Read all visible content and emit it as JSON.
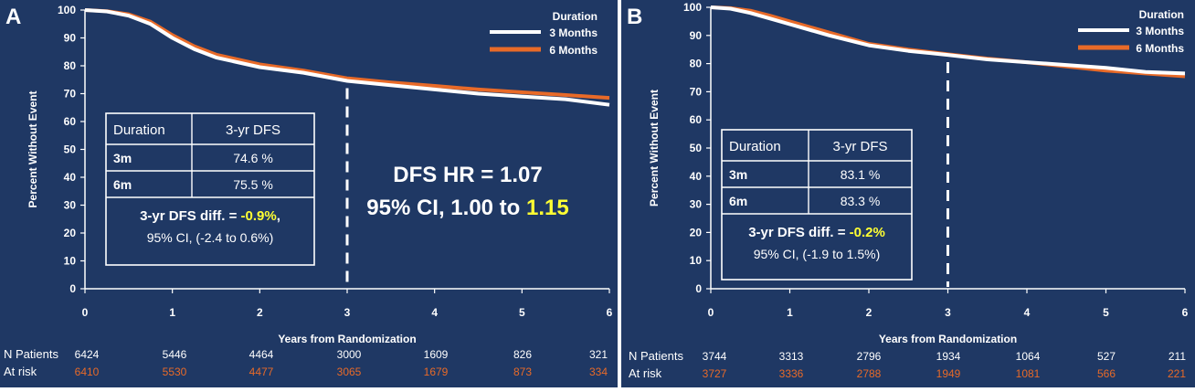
{
  "colors": {
    "background": "#1f3864",
    "panel_border": "#5b7fb8",
    "series_3m": "#ffffff",
    "series_6m": "#e86a28",
    "highlight": "#ffff33",
    "text": "#ffffff"
  },
  "chart_data": [
    {
      "panel_label": "A",
      "type": "line",
      "ylabel": "Percent Without Event",
      "xlabel": "Years from Randomization",
      "xlim": [
        0,
        6
      ],
      "ylim": [
        0,
        100
      ],
      "xticks": [
        "0",
        "1",
        "2",
        "3",
        "4",
        "5",
        "6"
      ],
      "yticks": [
        "0",
        "10",
        "20",
        "30",
        "40",
        "50",
        "60",
        "70",
        "80",
        "90",
        "100"
      ],
      "legend": {
        "title": "Duration",
        "placement": "top-right",
        "entries": [
          "3 Months",
          "6 Months"
        ]
      },
      "series": [
        {
          "name": "3 Months",
          "x": [
            0,
            0.25,
            0.5,
            0.75,
            1,
            1.25,
            1.5,
            2,
            2.5,
            3,
            3.5,
            4,
            4.5,
            5,
            5.5,
            6
          ],
          "y": [
            100,
            99.5,
            98,
            95,
            90,
            86,
            83,
            79.5,
            77.5,
            74.6,
            73,
            71.5,
            70,
            69,
            68,
            66
          ]
        },
        {
          "name": "6 Months",
          "x": [
            0,
            0.25,
            0.5,
            0.75,
            1,
            1.25,
            1.5,
            2,
            2.5,
            3,
            3.5,
            4,
            4.5,
            5,
            5.5,
            6
          ],
          "y": [
            100,
            99.6,
            98.5,
            95.8,
            91,
            87,
            84,
            80.5,
            78.3,
            75.5,
            74,
            72.8,
            71.5,
            70.5,
            69.5,
            68.5
          ]
        }
      ],
      "vline_at": 3,
      "table": {
        "headers": [
          "Duration",
          "3-yr DFS"
        ],
        "rows": [
          [
            "3m",
            "74.6 %"
          ],
          [
            "6m",
            "75.5 %"
          ]
        ],
        "diff_prefix": "3-yr DFS diff. = ",
        "diff_value": "-0.9%",
        "diff_suffix": ",",
        "ci_line": "95% CI, (-2.4 to 0.6%)"
      },
      "hr": {
        "line1": "DFS HR = 1.07",
        "line2_prefix": "95% CI, 1.00 to ",
        "line2_highlight": "1.15"
      },
      "at_risk": {
        "label1": "N Patients",
        "label2": "At risk",
        "row1": [
          "6424",
          "5446",
          "4464",
          "3000",
          "1609",
          "826",
          "321"
        ],
        "row2": [
          "6410",
          "5530",
          "4477",
          "3065",
          "1679",
          "873",
          "334"
        ]
      }
    },
    {
      "panel_label": "B",
      "type": "line",
      "ylabel": "Percent Without Event",
      "xlabel": "Years from Randomization",
      "xlim": [
        0,
        6
      ],
      "ylim": [
        0,
        100
      ],
      "xticks": [
        "0",
        "1",
        "2",
        "3",
        "4",
        "5",
        "6"
      ],
      "yticks": [
        "0",
        "10",
        "20",
        "30",
        "40",
        "50",
        "60",
        "70",
        "80",
        "90",
        "100"
      ],
      "legend": {
        "title": "Duration",
        "placement": "top-right",
        "entries": [
          "3 Months",
          "6 Months"
        ]
      },
      "series": [
        {
          "name": "3 Months",
          "x": [
            0,
            0.25,
            0.5,
            0.75,
            1,
            1.5,
            2,
            2.5,
            3,
            3.5,
            4,
            4.5,
            5,
            5.5,
            6
          ],
          "y": [
            100,
            99.5,
            98,
            96,
            94,
            90,
            86.5,
            84.5,
            83.1,
            81.5,
            80.5,
            79.5,
            78.5,
            77,
            76.5
          ]
        },
        {
          "name": "6 Months",
          "x": [
            0,
            0.25,
            0.5,
            0.75,
            1,
            1.5,
            2,
            2.5,
            3,
            3.5,
            4,
            4.5,
            5,
            5.5,
            6
          ],
          "y": [
            100,
            99.7,
            98.8,
            97,
            95,
            91,
            87,
            85,
            83.3,
            81.8,
            80.5,
            79,
            77.5,
            76.5,
            75.5
          ]
        }
      ],
      "vline_at": 3,
      "table": {
        "headers": [
          "Duration",
          "3-yr DFS"
        ],
        "rows": [
          [
            "3m",
            "83.1 %"
          ],
          [
            "6m",
            "83.3 %"
          ]
        ],
        "diff_prefix": "3-yr DFS diff. = ",
        "diff_value": "-0.2%",
        "diff_suffix": "",
        "ci_line": "95% CI, (-1.9 to 1.5%)"
      },
      "at_risk": {
        "label1": "N Patients",
        "label2": "At risk",
        "row1": [
          "3744",
          "3313",
          "2796",
          "1934",
          "1064",
          "527",
          "211"
        ],
        "row2": [
          "3727",
          "3336",
          "2788",
          "1949",
          "1081",
          "566",
          "221"
        ]
      }
    }
  ]
}
